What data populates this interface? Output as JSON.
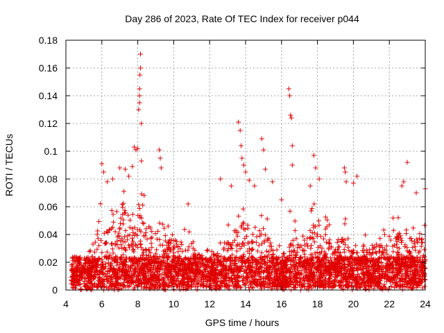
{
  "chart_data": {
    "type": "scatter",
    "title": "Day 286 of 2023, Rate Of TEC Index for receiver p044",
    "xlabel": "GPS time / hours",
    "ylabel": "ROTI / TECUs",
    "xlim": [
      4,
      24
    ],
    "ylim": [
      0,
      0.18
    ],
    "xticks": [
      4,
      6,
      8,
      10,
      12,
      14,
      16,
      18,
      20,
      22,
      24
    ],
    "yticks": [
      0,
      0.02,
      0.04,
      0.06,
      0.08,
      0.1,
      0.12,
      0.14,
      0.16,
      0.18
    ],
    "xtick_labels": [
      "4",
      "6",
      "8",
      "10",
      "12",
      "14",
      "16",
      "18",
      "20",
      "22",
      "24"
    ],
    "ytick_labels": [
      "0",
      "0.02",
      "0.04",
      "0.06",
      "0.08",
      "0.1",
      "0.12",
      "0.14",
      "0.16",
      "0.18"
    ],
    "grid": true,
    "marker": "+",
    "color": "#e00000",
    "series": [
      {
        "name": "ROTI",
        "envelope_x": [
          4.3,
          4.6,
          5.0,
          5.5,
          5.8,
          6.0,
          6.2,
          6.5,
          7.0,
          7.3,
          7.6,
          7.9,
          8.1,
          8.3,
          8.6,
          9.0,
          9.3,
          9.6,
          10.0,
          10.3,
          10.6,
          11.0,
          11.5,
          12.0,
          12.5,
          12.8,
          13.2,
          13.6,
          13.8,
          14.2,
          14.6,
          15.0,
          15.3,
          15.6,
          16.0,
          16.3,
          16.5,
          16.8,
          17.2,
          17.6,
          17.9,
          18.2,
          18.6,
          19.0,
          19.4,
          19.7,
          20.0,
          20.4,
          20.8,
          21.2,
          21.6,
          22.0,
          22.4,
          22.8,
          23.2,
          23.6,
          24.0
        ],
        "envelope_y": [
          0.025,
          0.02,
          0.022,
          0.035,
          0.06,
          0.07,
          0.055,
          0.06,
          0.07,
          0.08,
          0.06,
          0.065,
          0.09,
          0.075,
          0.05,
          0.055,
          0.06,
          0.045,
          0.05,
          0.045,
          0.05,
          0.04,
          0.035,
          0.03,
          0.04,
          0.05,
          0.045,
          0.06,
          0.07,
          0.05,
          0.055,
          0.06,
          0.05,
          0.04,
          0.04,
          0.045,
          0.06,
          0.05,
          0.04,
          0.06,
          0.065,
          0.06,
          0.05,
          0.045,
          0.06,
          0.05,
          0.045,
          0.04,
          0.04,
          0.045,
          0.045,
          0.05,
          0.055,
          0.05,
          0.045,
          0.05,
          0.05
        ],
        "dense_points_per_hour": 200,
        "outliers": [
          [
            6.0,
            0.091
          ],
          [
            6.1,
            0.085
          ],
          [
            6.3,
            0.078
          ],
          [
            6.6,
            0.08
          ],
          [
            7.0,
            0.088
          ],
          [
            7.3,
            0.087
          ],
          [
            7.5,
            0.082
          ],
          [
            7.7,
            0.089
          ],
          [
            7.8,
            0.103
          ],
          [
            7.9,
            0.101
          ],
          [
            8.0,
            0.102
          ],
          [
            8.05,
            0.13
          ],
          [
            8.1,
            0.14
          ],
          [
            8.1,
            0.145
          ],
          [
            8.12,
            0.155
          ],
          [
            8.15,
            0.16
          ],
          [
            8.15,
            0.17
          ],
          [
            8.1,
            0.135
          ],
          [
            8.2,
            0.12
          ],
          [
            8.2,
            0.093
          ],
          [
            9.2,
            0.101
          ],
          [
            9.25,
            0.095
          ],
          [
            9.3,
            0.088
          ],
          [
            10.8,
            0.062
          ],
          [
            12.6,
            0.08
          ],
          [
            13.2,
            0.075
          ],
          [
            13.6,
            0.121
          ],
          [
            13.7,
            0.115
          ],
          [
            13.75,
            0.104
          ],
          [
            13.8,
            0.095
          ],
          [
            13.9,
            0.09
          ],
          [
            14.0,
            0.085
          ],
          [
            14.2,
            0.079
          ],
          [
            14.5,
            0.075
          ],
          [
            14.9,
            0.109
          ],
          [
            15.0,
            0.101
          ],
          [
            15.1,
            0.087
          ],
          [
            15.5,
            0.078
          ],
          [
            16.0,
            0.065
          ],
          [
            16.4,
            0.145
          ],
          [
            16.45,
            0.14
          ],
          [
            16.5,
            0.126
          ],
          [
            16.55,
            0.124
          ],
          [
            16.6,
            0.104
          ],
          [
            16.6,
            0.09
          ],
          [
            17.6,
            0.075
          ],
          [
            17.8,
            0.097
          ],
          [
            17.9,
            0.088
          ],
          [
            18.1,
            0.08
          ],
          [
            19.5,
            0.088
          ],
          [
            19.55,
            0.085
          ],
          [
            19.6,
            0.078
          ],
          [
            20.2,
            0.082
          ],
          [
            20.0,
            0.077
          ],
          [
            22.7,
            0.075
          ],
          [
            22.8,
            0.078
          ],
          [
            23.0,
            0.092
          ],
          [
            23.5,
            0.07
          ],
          [
            24.0,
            0.073
          ]
        ]
      }
    ]
  }
}
